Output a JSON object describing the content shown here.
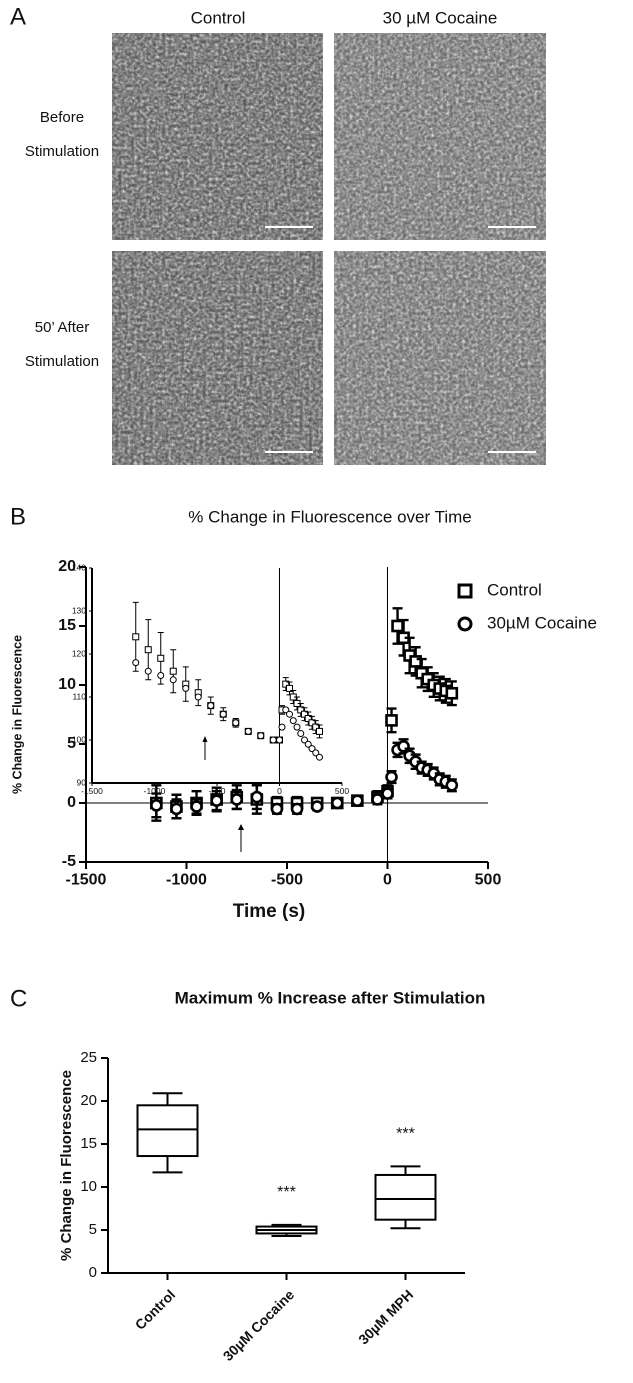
{
  "panel_labels": [
    "A",
    "B",
    "C"
  ],
  "panel_a": {
    "columns": [
      "Control",
      "30 µM Cocaine"
    ],
    "rows": [
      [
        "Before",
        "Stimulation"
      ],
      [
        "50’ After",
        "Stimulation"
      ]
    ]
  },
  "chart_data": [
    {
      "type": "line",
      "title": "% Change in Fluorescence over Time",
      "x_label": "Time (s)",
      "y_label": "% Change in Fluorescence",
      "x": [
        -1150,
        -1050,
        -950,
        -850,
        -750,
        -650,
        -550,
        -450,
        -350,
        -250,
        -150,
        -50,
        0,
        20,
        50,
        80,
        110,
        140,
        170,
        200,
        230,
        260,
        290,
        320
      ],
      "series": [
        {
          "name": "Control",
          "color": "#000000",
          "marker": "square",
          "values": [
            0,
            -0.3,
            0,
            0.3,
            0.5,
            0.3,
            0,
            0,
            0,
            0,
            0.2,
            0.5,
            1,
            7,
            15,
            14,
            12.5,
            12,
            11,
            10.5,
            10,
            9.7,
            9.5,
            9.3
          ],
          "errors": [
            1.5,
            1,
            1,
            1,
            1,
            1.2,
            0.5,
            0.5,
            0.3,
            0.3,
            0.4,
            0.5,
            0.5,
            1,
            1.5,
            1.5,
            1.5,
            1.2,
            1.2,
            1,
            1,
            1,
            1,
            1
          ]
        },
        {
          "name": "30µM Cocaine",
          "color": "#000000",
          "marker": "circle",
          "values": [
            -0.2,
            -0.5,
            -0.3,
            0.2,
            0.3,
            0.5,
            -0.5,
            -0.5,
            -0.3,
            0,
            0.2,
            0.3,
            0.8,
            2.2,
            4.5,
            4.8,
            4,
            3.5,
            3,
            2.8,
            2.5,
            2,
            1.8,
            1.5
          ],
          "errors": [
            1,
            0.8,
            0.6,
            0.8,
            0.8,
            1,
            0.4,
            0.4,
            0.3,
            0.3,
            0.4,
            0.4,
            0.4,
            0.5,
            0.6,
            0.6,
            0.6,
            0.6,
            0.5,
            0.5,
            0.5,
            0.5,
            0.5,
            0.5
          ]
        }
      ],
      "xlim": [
        -1500,
        500
      ],
      "xticks": [
        -1500,
        -1000,
        -500,
        0,
        500
      ],
      "ylim": [
        -5,
        20
      ],
      "yticks": [
        -5,
        0,
        5,
        10,
        15,
        20
      ],
      "legend": "right"
    },
    {
      "type": "line",
      "x": [
        -1150,
        -1050,
        -950,
        -850,
        -750,
        -650,
        -550,
        -450,
        -350,
        -250,
        -150,
        -50,
        0,
        20,
        50,
        80,
        110,
        140,
        170,
        200,
        230,
        260,
        290,
        320
      ],
      "series": [
        {
          "name": "Control",
          "color": "#000000",
          "marker": "square",
          "values": [
            124,
            121,
            119,
            116,
            113,
            111,
            108,
            106,
            104,
            102,
            101,
            100,
            100,
            107,
            113,
            112,
            110,
            108.5,
            107,
            106,
            105,
            104,
            103,
            102
          ],
          "errors": [
            8,
            7,
            6,
            5,
            4,
            3,
            2,
            1.5,
            1,
            0.5,
            0.5,
            0.5,
            0.5,
            1,
            1.5,
            1.5,
            1.5,
            1.5,
            1.5,
            1.5,
            1.5,
            1.5,
            1.5,
            1.5
          ]
        },
        {
          "name": "30µM Cocaine",
          "color": "#000000",
          "marker": "circle",
          "values": [
            118,
            116,
            115,
            114,
            112,
            110,
            108,
            106,
            104,
            102,
            101,
            100,
            100,
            103,
            107,
            106,
            104.5,
            103,
            101.5,
            100,
            99,
            98,
            97,
            96
          ]
        }
      ],
      "xlim": [
        -1500,
        500
      ],
      "xticks": [
        -1500,
        -1000,
        -500,
        0,
        500
      ],
      "ylim": [
        90,
        140
      ],
      "yticks": [
        90,
        100,
        110,
        120,
        130,
        140
      ]
    },
    {
      "type": "box",
      "title": "Maximum % Increase after Stimulation",
      "y_label": "% Change in Fluorescence",
      "categories": [
        "Control",
        "30µM Cocaine",
        "30µM MPH"
      ],
      "values": [
        [
          11.7,
          13.6,
          16.7,
          19.5,
          20.9
        ],
        [
          4.3,
          4.6,
          5.0,
          5.4,
          5.6
        ],
        [
          5.2,
          6.2,
          8.6,
          11.4,
          12.4
        ]
      ],
      "annotations": [
        {
          "x": "30µM Cocaine",
          "text": "***"
        },
        {
          "x": "30µM MPH",
          "text": "***"
        }
      ],
      "ylim": [
        0,
        25
      ],
      "yticks": [
        0,
        5,
        10,
        15,
        20,
        25
      ]
    }
  ]
}
